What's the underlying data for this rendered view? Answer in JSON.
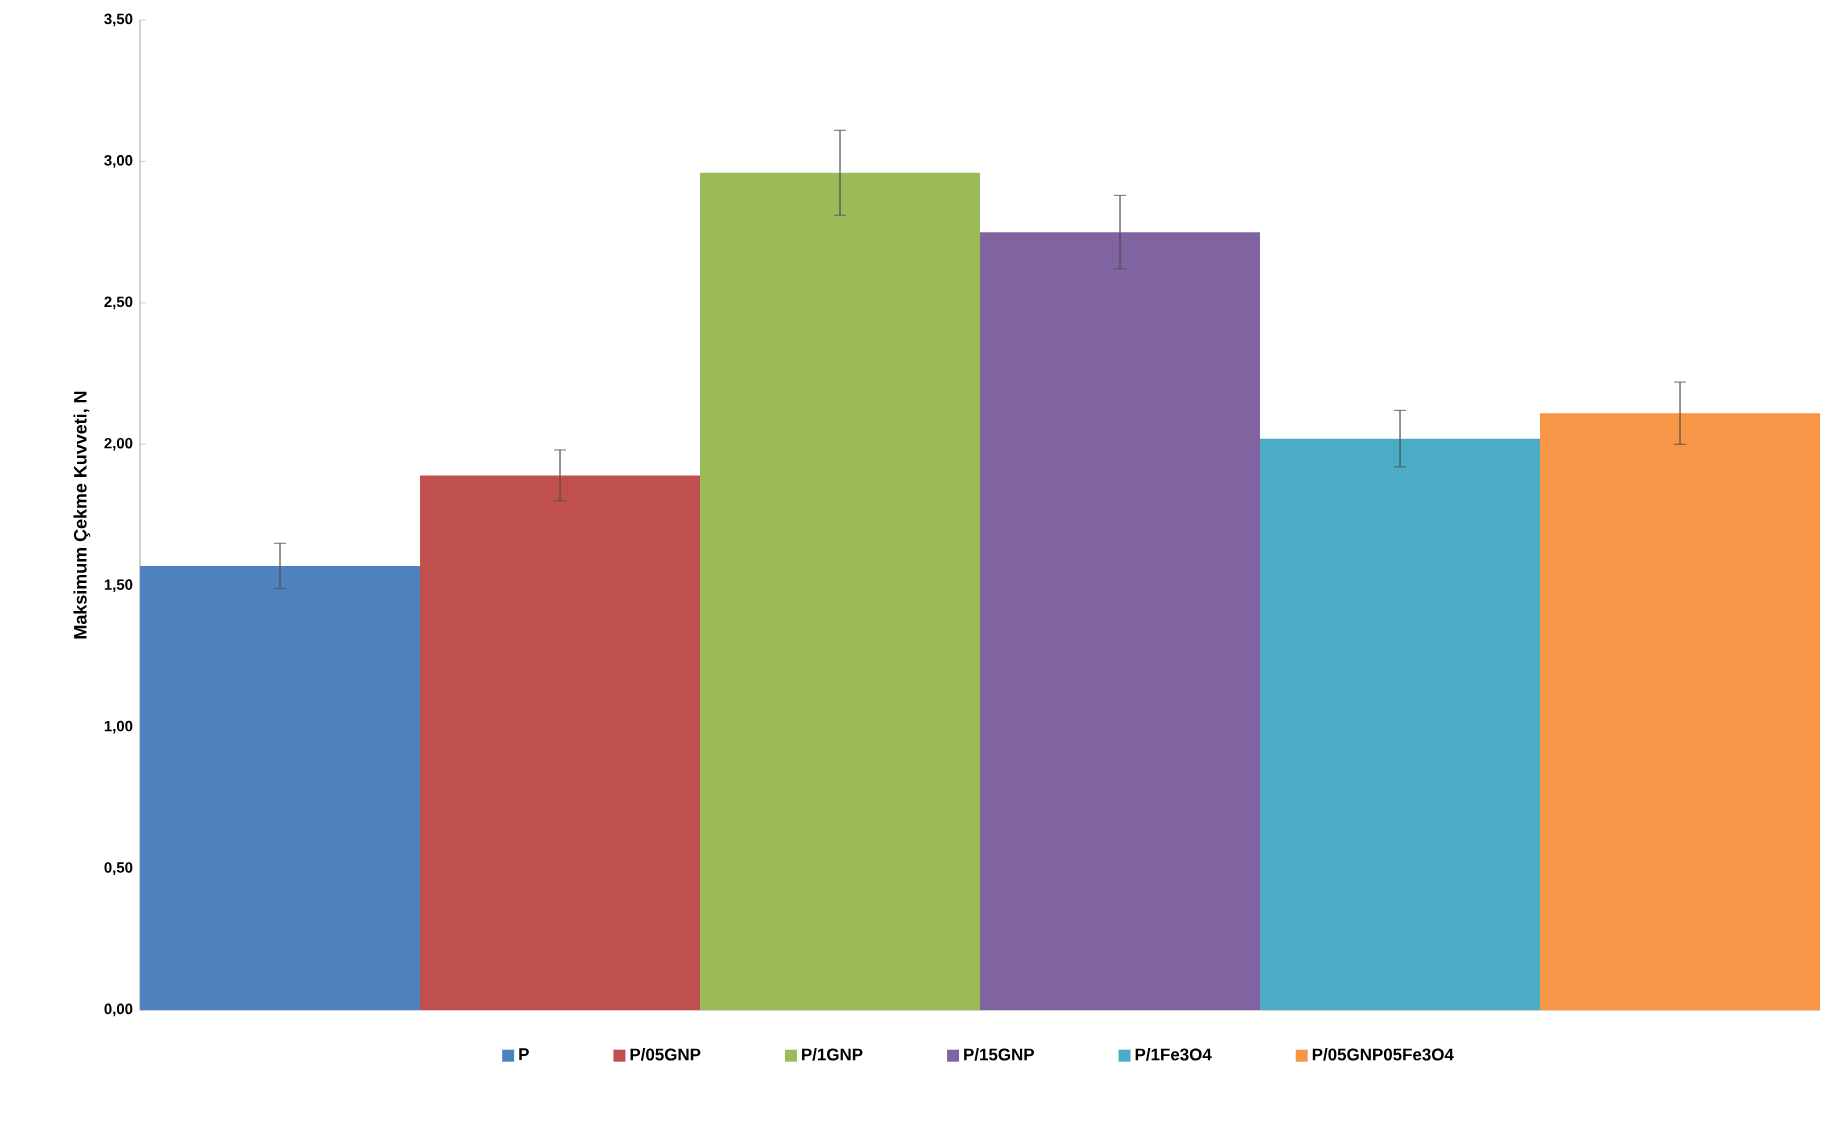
{
  "chart_data": {
    "type": "bar",
    "ylabel": "Maksimum Çekme Kuvveti, N",
    "categories": [
      null
    ],
    "series": [
      {
        "name": "P",
        "color": "#4f81bd",
        "values": [
          1.57
        ],
        "errors": [
          0.08
        ]
      },
      {
        "name": "P/05GNP",
        "color": "#c0504d",
        "values": [
          1.89
        ],
        "errors": [
          0.09
        ]
      },
      {
        "name": "P/1GNP",
        "color": "#9bbb59",
        "values": [
          2.96
        ],
        "errors": [
          0.15
        ]
      },
      {
        "name": "P/15GNP",
        "color": "#8064a2",
        "values": [
          2.75
        ],
        "errors": [
          0.13
        ]
      },
      {
        "name": "P/1Fe3O4",
        "color": "#4bacc6",
        "values": [
          2.02
        ],
        "errors": [
          0.1
        ]
      },
      {
        "name": "P/05GNP05Fe3O4",
        "color": "#f79646",
        "values": [
          2.11
        ],
        "errors": [
          0.11
        ]
      }
    ],
    "ylim": [
      0,
      3.5
    ],
    "yticks": [
      {
        "value": 0,
        "label": "0,00"
      },
      {
        "value": 0.5,
        "label": "0,50"
      },
      {
        "value": 1,
        "label": "1,00"
      },
      {
        "value": 1.5,
        "label": "1,50"
      },
      {
        "value": 2,
        "label": "2,00"
      },
      {
        "value": 2.5,
        "label": "2,50"
      },
      {
        "value": 3,
        "label": "3,00"
      },
      {
        "value": 3.5,
        "label": "3,50"
      }
    ],
    "legend": "bottom"
  }
}
